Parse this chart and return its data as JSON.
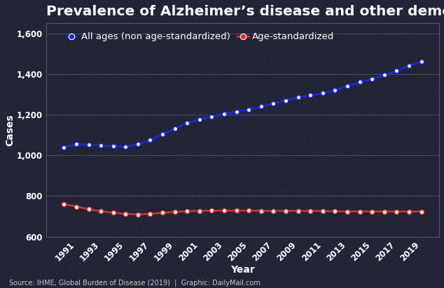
{
  "title": "Prevalence of Alzheimer’s disease and other dementias in US",
  "xlabel": "Year",
  "ylabel": "Cases",
  "source_text": "Source: IHME, Global Burden of Disease (2019)  |  Graphic: DailyMail.com",
  "years": [
    1990,
    1991,
    1992,
    1993,
    1994,
    1995,
    1996,
    1997,
    1998,
    1999,
    2000,
    2001,
    2002,
    2003,
    2004,
    2005,
    2006,
    2007,
    2008,
    2009,
    2010,
    2011,
    2012,
    2013,
    2014,
    2015,
    2016,
    2017,
    2018,
    2019
  ],
  "all_ages": [
    1040,
    1055,
    1052,
    1048,
    1045,
    1042,
    1055,
    1075,
    1105,
    1130,
    1160,
    1175,
    1190,
    1205,
    1215,
    1225,
    1240,
    1255,
    1270,
    1285,
    1295,
    1305,
    1320,
    1340,
    1360,
    1375,
    1395,
    1415,
    1440,
    1460
  ],
  "age_standardized": [
    760,
    748,
    735,
    725,
    718,
    712,
    710,
    712,
    718,
    722,
    725,
    727,
    728,
    728,
    728,
    728,
    727,
    727,
    727,
    727,
    727,
    726,
    725,
    724,
    724,
    724,
    724,
    724,
    724,
    724
  ],
  "all_ages_color": "#2222ee",
  "age_std_color": "#dd3333",
  "background_color": "#5a6070",
  "plot_bg_color": "#1a1a28",
  "grid_color": "#555566",
  "text_color": "#ffffff",
  "ylim": [
    600,
    1650
  ],
  "yticks": [
    600,
    800,
    1000,
    1200,
    1400,
    1600
  ],
  "xtick_years": [
    1991,
    1993,
    1995,
    1997,
    1999,
    2001,
    2003,
    2005,
    2007,
    2009,
    2011,
    2013,
    2015,
    2017,
    2019
  ],
  "legend_label_all": "All ages (non age-standardized)",
  "legend_label_std": "Age-standardized",
  "title_fontsize": 14.5,
  "axis_label_fontsize": 10,
  "tick_fontsize": 8.5,
  "legend_fontsize": 9.5,
  "source_fontsize": 7
}
